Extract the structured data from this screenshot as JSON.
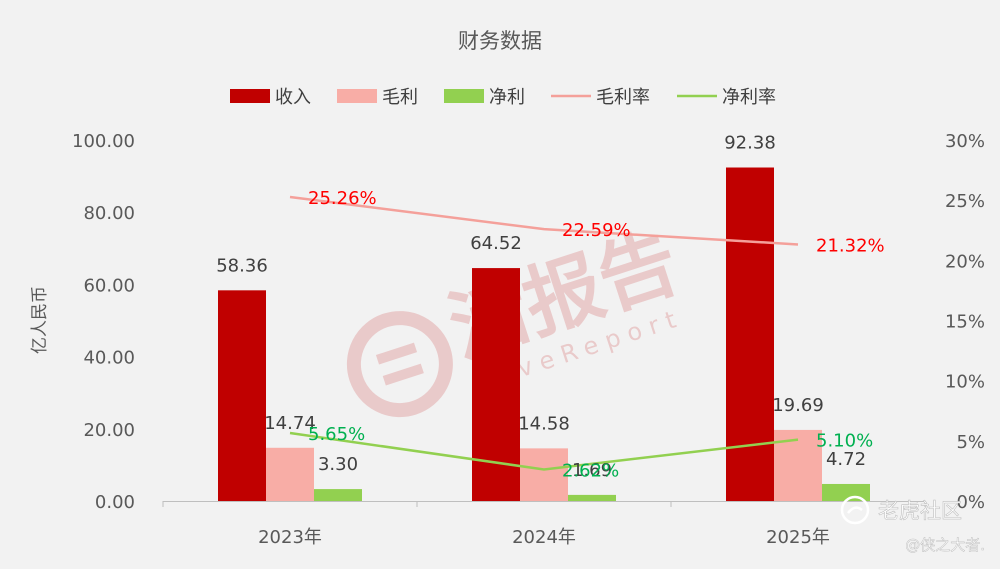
{
  "chart_data": {
    "type": "bar",
    "title": "财务数据",
    "categories": [
      "2023年",
      "2024年",
      "2025年"
    ],
    "ylabel": "亿人民币",
    "ylim": [
      0,
      100
    ],
    "y_ticks": [
      "0.00",
      "20.00",
      "40.00",
      "60.00",
      "80.00",
      "100.00"
    ],
    "y2lim": [
      0,
      30
    ],
    "y2_ticks": [
      "0%",
      "5%",
      "10%",
      "15%",
      "20%",
      "25%",
      "30%"
    ],
    "legend_position": "top",
    "series": [
      {
        "name": "收入",
        "type": "bar",
        "axis": "left",
        "color": "#c00000",
        "values": [
          58.36,
          64.52,
          92.38
        ],
        "labels": [
          "58.36",
          "64.52",
          "92.38"
        ]
      },
      {
        "name": "毛利",
        "type": "bar",
        "axis": "left",
        "color": "#f8ada6",
        "values": [
          14.74,
          14.58,
          19.69
        ],
        "labels": [
          "14.74",
          "14.58",
          "19.69"
        ]
      },
      {
        "name": "净利",
        "type": "bar",
        "axis": "left",
        "color": "#92d050",
        "values": [
          3.3,
          1.69,
          4.72
        ],
        "labels": [
          "3.30",
          "1.69",
          "4.72"
        ]
      },
      {
        "name": "毛利率",
        "type": "line",
        "axis": "right",
        "color": "#f4a09a",
        "label_color": "#ff0000",
        "values": [
          25.26,
          22.59,
          21.32
        ],
        "labels": [
          "25.26%",
          "22.59%",
          "21.32%"
        ]
      },
      {
        "name": "净利率",
        "type": "line",
        "axis": "right",
        "color": "#92d050",
        "label_color": "#00b050",
        "values": [
          5.65,
          2.62,
          5.1
        ],
        "labels": [
          "5.65%",
          "2.62%",
          "5.10%"
        ]
      }
    ]
  },
  "watermark": {
    "text_cn": "活报告",
    "text_en": "LiveReport"
  },
  "footer": {
    "brand": "老虎社区",
    "author": "@侠之大者."
  }
}
